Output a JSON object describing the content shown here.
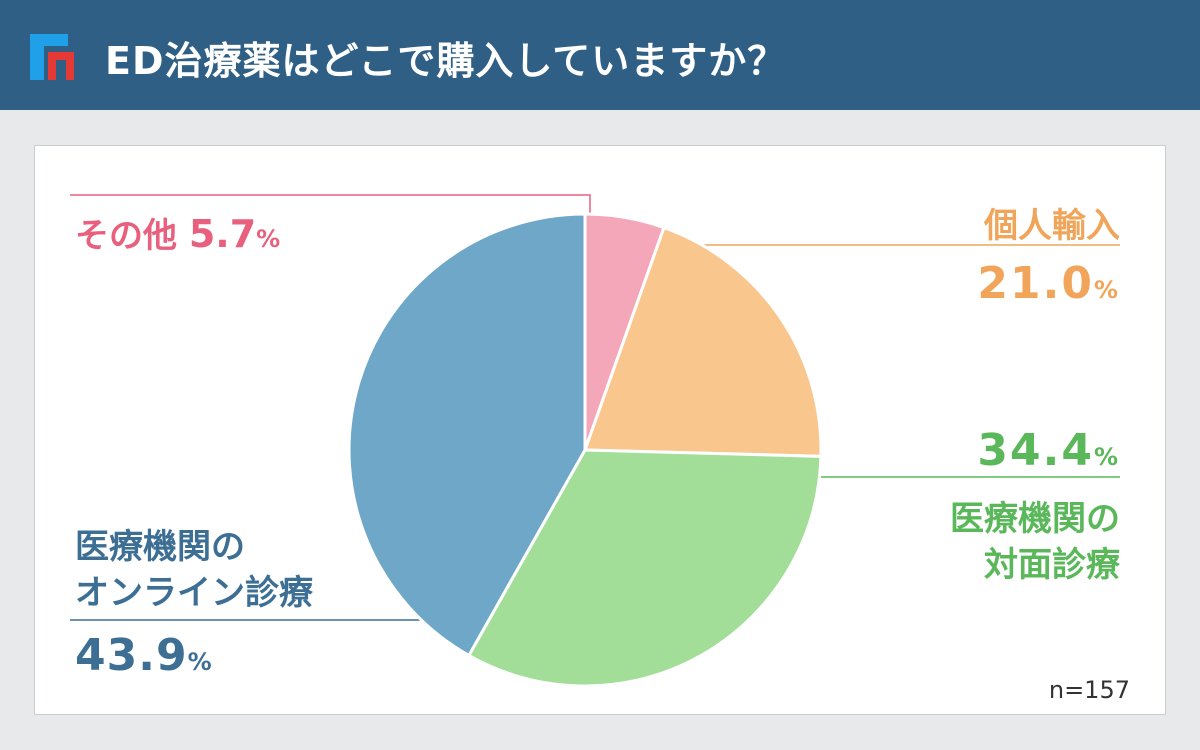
{
  "header": {
    "title": "ED治療薬はどこで購入していますか？",
    "background_color": "#2f5f85",
    "logo": {
      "icon": "f-brand-logo",
      "colors": [
        "#1fa0e8",
        "#e53935"
      ]
    }
  },
  "sample_size": "n=157",
  "percent_sign": "%",
  "labels": {
    "other": {
      "name": "その他",
      "value": "5.7"
    },
    "import": {
      "name": "個人輸入",
      "value": "21.0"
    },
    "face": {
      "name_line1": "医療機関の",
      "name_line2": "対面診療",
      "value": "34.4"
    },
    "online": {
      "name_line1": "医療機関の",
      "name_line2": "オンライン診療",
      "value": "43.9"
    }
  },
  "chart_data": {
    "type": "pie",
    "title": "ED治療薬はどこで購入していますか？",
    "n": 157,
    "unit": "%",
    "start_angle": "12 o'clock",
    "direction": "clockwise",
    "slices": [
      {
        "label": "その他",
        "value": 5.7,
        "color": "#f4a7b9"
      },
      {
        "label": "個人輸入",
        "value": 21.0,
        "color": "#f9c68d"
      },
      {
        "label": "医療機関の対面診療",
        "value": 34.4,
        "color": "#a2de97"
      },
      {
        "label": "医療機関のオンライン診療",
        "value": 43.9,
        "color": "#6fa7c9"
      }
    ]
  }
}
